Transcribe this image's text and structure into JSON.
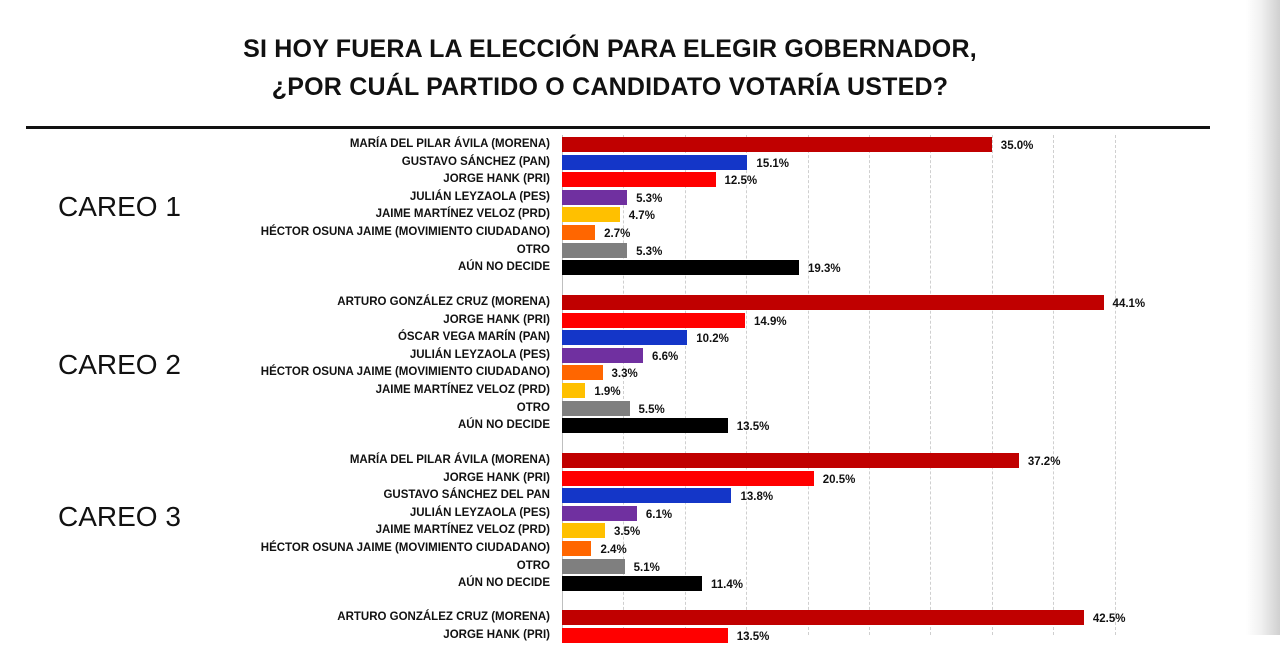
{
  "title": {
    "line1": "SI HOY FUERA LA ELECCIÓN PARA ELEGIR GOBERNADOR,",
    "line2": "¿POR CUÁL PARTIDO O CANDIDATO VOTARÍA USTED?"
  },
  "colors": {
    "morena": "#c00000",
    "pan": "#1436c8",
    "pri": "#ff0000",
    "pes": "#7030a0",
    "prd": "#ffc000",
    "mc": "#ff6600",
    "otro": "#7f7f7f",
    "no_decide": "#000000"
  },
  "chart_data": [
    {
      "type": "bar",
      "orientation": "horizontal",
      "group_label": "CAREO 1",
      "categories": [
        "MARÍA DEL PILAR ÁVILA (MORENA)",
        "GUSTAVO SÁNCHEZ (PAN)",
        "JORGE HANK  (PRI)",
        "JULIÁN LEYZAOLA (PES)",
        "JAIME MARTÍNEZ VELOZ (PRD)",
        "HÉCTOR OSUNA JAIME (MOVIMIENTO CIUDADANO)",
        "OTRO",
        "AÚN NO DECIDE"
      ],
      "values": [
        35.0,
        15.1,
        12.5,
        5.3,
        4.7,
        2.7,
        5.3,
        19.3
      ],
      "value_labels": [
        "35.0%",
        "15.1%",
        "12.5%",
        "5.3%",
        "4.7%",
        "2.7%",
        "5.3%",
        "19.3%"
      ],
      "bar_colors": [
        "#c00000",
        "#1436c8",
        "#ff0000",
        "#7030a0",
        "#ffc000",
        "#ff6600",
        "#7f7f7f",
        "#000000"
      ]
    },
    {
      "type": "bar",
      "orientation": "horizontal",
      "group_label": "CAREO 2",
      "categories": [
        "ARTURO GONZÁLEZ CRUZ (MORENA)",
        "JORGE HANK  (PRI)",
        "ÓSCAR VEGA MARÍN (PAN)",
        "JULIÁN LEYZAOLA (PES)",
        "HÉCTOR OSUNA JAIME (MOVIMIENTO CIUDADANO)",
        "JAIME MARTÍNEZ VELOZ (PRD)",
        "OTRO",
        "AÚN NO DECIDE"
      ],
      "values": [
        44.1,
        14.9,
        10.2,
        6.6,
        3.3,
        1.9,
        5.5,
        13.5
      ],
      "value_labels": [
        "44.1%",
        "14.9%",
        "10.2%",
        "6.6%",
        "3.3%",
        "1.9%",
        "5.5%",
        "13.5%"
      ],
      "bar_colors": [
        "#c00000",
        "#ff0000",
        "#1436c8",
        "#7030a0",
        "#ff6600",
        "#ffc000",
        "#7f7f7f",
        "#000000"
      ]
    },
    {
      "type": "bar",
      "orientation": "horizontal",
      "group_label": "CAREO 3",
      "categories": [
        "MARÍA DEL PILAR ÁVILA (MORENA)",
        "JORGE HANK  (PRI)",
        "GUSTAVO SÁNCHEZ DEL PAN",
        "JULIÁN LEYZAOLA (PES)",
        "JAIME MARTÍNEZ VELOZ (PRD)",
        "HÉCTOR OSUNA JAIME (MOVIMIENTO CIUDADANO)",
        "OTRO",
        "AÚN NO DECIDE"
      ],
      "values": [
        37.2,
        20.5,
        13.8,
        6.1,
        3.5,
        2.4,
        5.1,
        11.4
      ],
      "value_labels": [
        "37.2%",
        "20.5%",
        "13.8%",
        "6.1%",
        "3.5%",
        "2.4%",
        "5.1%",
        "11.4%"
      ],
      "bar_colors": [
        "#c00000",
        "#ff0000",
        "#1436c8",
        "#7030a0",
        "#ffc000",
        "#ff6600",
        "#7f7f7f",
        "#000000"
      ]
    },
    {
      "type": "bar",
      "orientation": "horizontal",
      "group_label": "",
      "categories": [
        "ARTURO GONZÁLEZ CRUZ (MORENA)",
        "JORGE HANK  (PRI)"
      ],
      "values": [
        42.5,
        13.5
      ],
      "value_labels": [
        "42.5%",
        "13.5%"
      ],
      "bar_colors": [
        "#c00000",
        "#ff0000"
      ]
    }
  ]
}
